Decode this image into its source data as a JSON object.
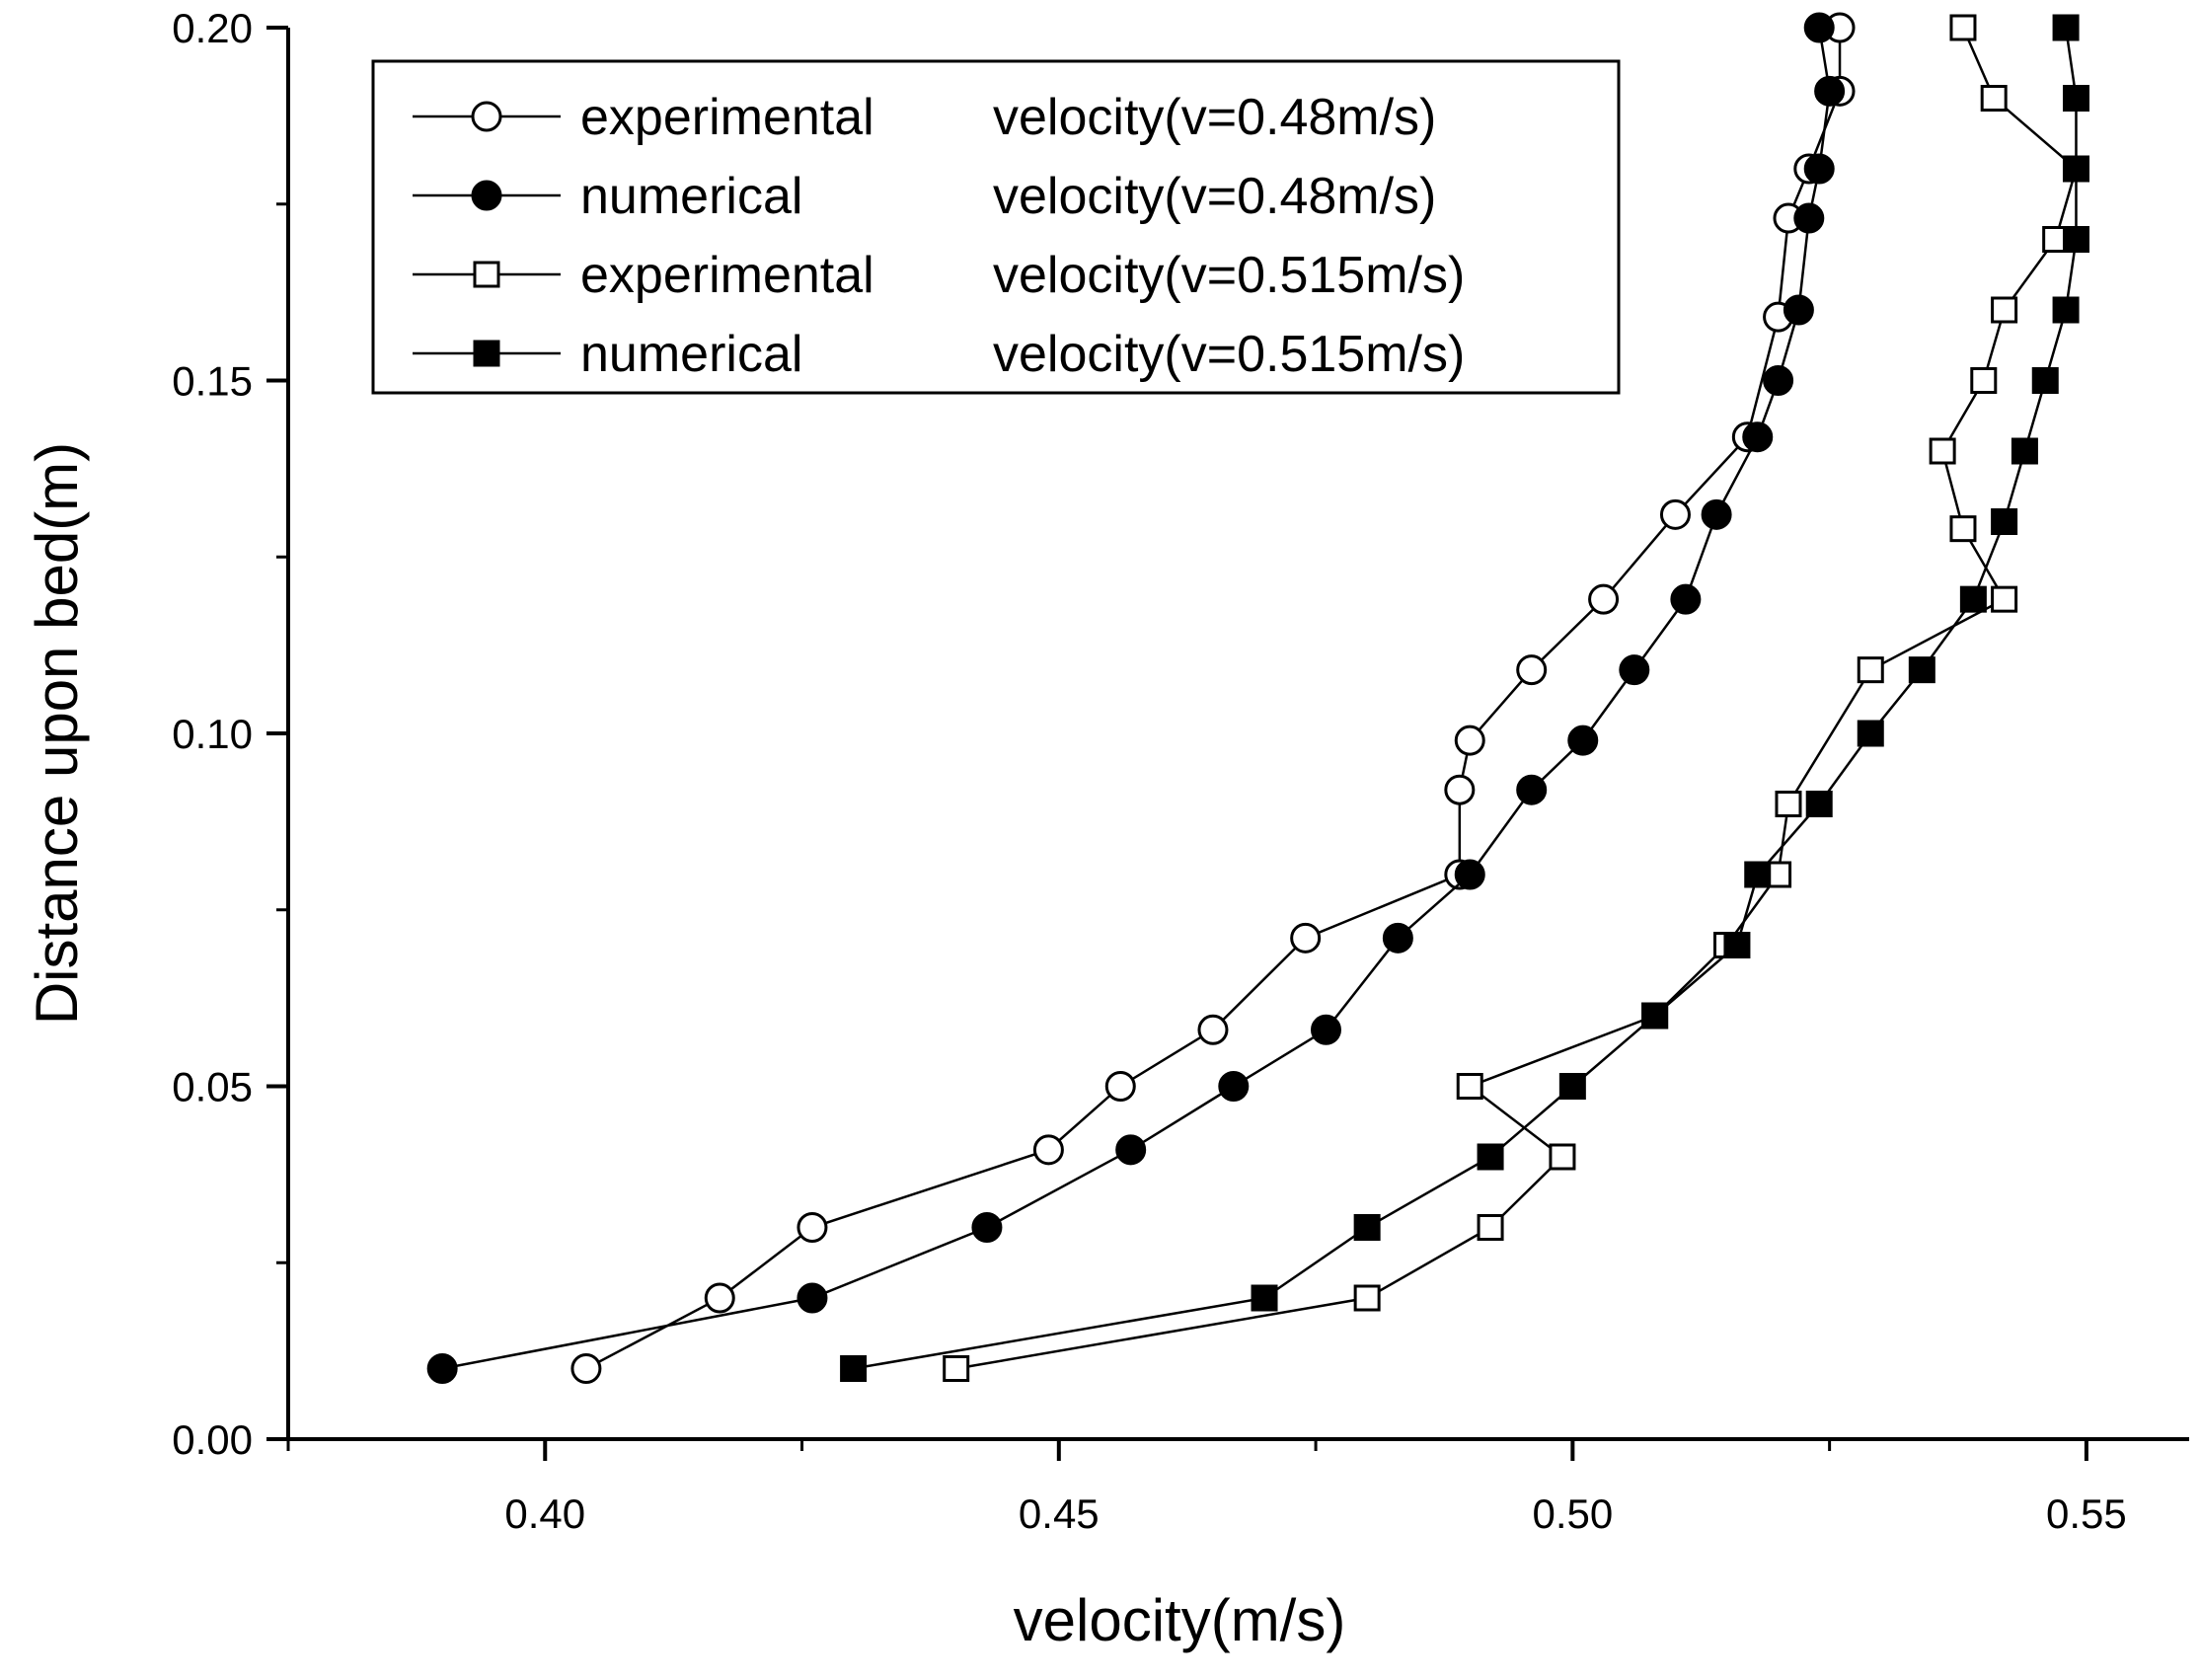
{
  "chart_data": {
    "type": "line",
    "xlabel": "velocity(m/s)",
    "ylabel": "Distance upon bed(m)",
    "xlim": [
      0.375,
      0.56
    ],
    "ylim": [
      0.0,
      0.2
    ],
    "xticks": [
      0.4,
      0.45,
      0.5,
      0.55
    ],
    "xtick_labels": [
      "0.40",
      "0.45",
      "0.50",
      "0.55"
    ],
    "yticks": [
      0.0,
      0.05,
      0.1,
      0.15,
      0.2
    ],
    "ytick_labels": [
      "0.00",
      "0.05",
      "0.10",
      "0.15",
      "0.20"
    ],
    "legend_position": "top-left",
    "series": [
      {
        "name": "experimental",
        "label": "velocity(v=0.48m/s)",
        "marker": "circle-open",
        "points": [
          [
            0.404,
            0.01
          ],
          [
            0.417,
            0.02
          ],
          [
            0.426,
            0.03
          ],
          [
            0.449,
            0.041
          ],
          [
            0.456,
            0.05
          ],
          [
            0.465,
            0.058
          ],
          [
            0.474,
            0.071
          ],
          [
            0.489,
            0.08
          ],
          [
            0.489,
            0.092
          ],
          [
            0.49,
            0.099
          ],
          [
            0.496,
            0.109
          ],
          [
            0.503,
            0.119
          ],
          [
            0.51,
            0.131
          ],
          [
            0.517,
            0.142
          ],
          [
            0.52,
            0.159
          ],
          [
            0.521,
            0.173
          ],
          [
            0.523,
            0.18
          ],
          [
            0.526,
            0.191
          ],
          [
            0.526,
            0.2
          ]
        ]
      },
      {
        "name": "numerical",
        "label": "velocity(v=0.48m/s)",
        "marker": "circle-filled",
        "points": [
          [
            0.39,
            0.01
          ],
          [
            0.426,
            0.02
          ],
          [
            0.443,
            0.03
          ],
          [
            0.457,
            0.041
          ],
          [
            0.467,
            0.05
          ],
          [
            0.476,
            0.058
          ],
          [
            0.483,
            0.071
          ],
          [
            0.49,
            0.08
          ],
          [
            0.496,
            0.092
          ],
          [
            0.501,
            0.099
          ],
          [
            0.506,
            0.109
          ],
          [
            0.511,
            0.119
          ],
          [
            0.514,
            0.131
          ],
          [
            0.518,
            0.142
          ],
          [
            0.52,
            0.15
          ],
          [
            0.522,
            0.16
          ],
          [
            0.523,
            0.173
          ],
          [
            0.524,
            0.18
          ],
          [
            0.525,
            0.191
          ],
          [
            0.524,
            0.2
          ]
        ]
      },
      {
        "name": "experimental",
        "label": "velocity(v=0.515m/s)",
        "marker": "square-open",
        "points": [
          [
            0.44,
            0.01
          ],
          [
            0.48,
            0.02
          ],
          [
            0.492,
            0.03
          ],
          [
            0.499,
            0.04
          ],
          [
            0.49,
            0.05
          ],
          [
            0.508,
            0.06
          ],
          [
            0.515,
            0.07
          ],
          [
            0.52,
            0.08
          ],
          [
            0.521,
            0.09
          ],
          [
            0.529,
            0.109
          ],
          [
            0.542,
            0.119
          ],
          [
            0.538,
            0.129
          ],
          [
            0.536,
            0.14
          ],
          [
            0.54,
            0.15
          ],
          [
            0.542,
            0.16
          ],
          [
            0.547,
            0.17
          ],
          [
            0.549,
            0.18
          ],
          [
            0.541,
            0.19
          ],
          [
            0.538,
            0.2
          ]
        ]
      },
      {
        "name": "numerical",
        "label": "velocity(v=0.515m/s)",
        "marker": "square-filled",
        "points": [
          [
            0.43,
            0.01
          ],
          [
            0.47,
            0.02
          ],
          [
            0.48,
            0.03
          ],
          [
            0.492,
            0.04
          ],
          [
            0.5,
            0.05
          ],
          [
            0.508,
            0.06
          ],
          [
            0.516,
            0.07
          ],
          [
            0.518,
            0.08
          ],
          [
            0.524,
            0.09
          ],
          [
            0.529,
            0.1
          ],
          [
            0.534,
            0.109
          ],
          [
            0.539,
            0.119
          ],
          [
            0.542,
            0.13
          ],
          [
            0.544,
            0.14
          ],
          [
            0.546,
            0.15
          ],
          [
            0.548,
            0.16
          ],
          [
            0.549,
            0.17
          ],
          [
            0.549,
            0.18
          ],
          [
            0.549,
            0.19
          ],
          [
            0.548,
            0.2
          ]
        ]
      }
    ]
  }
}
